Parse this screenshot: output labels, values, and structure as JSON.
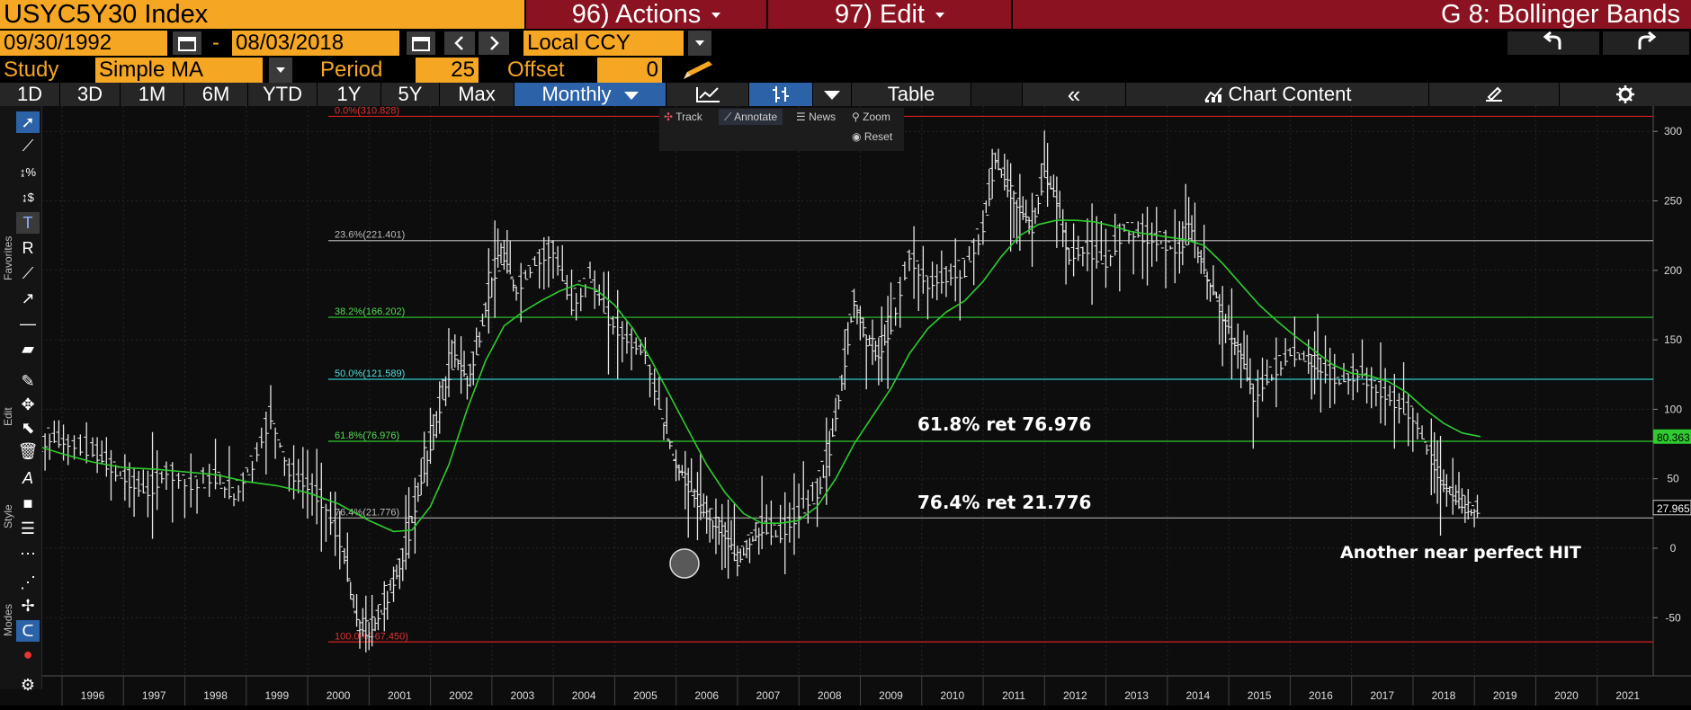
{
  "header": {
    "ticker": "USYC5Y30 Index",
    "actions_label": "96) Actions",
    "edit_label": "97) Edit",
    "chart_title": "G 8: Bollinger Bands"
  },
  "dates": {
    "start": "09/30/1992",
    "separator": "-",
    "end": "08/03/2018",
    "currency": "Local CCY"
  },
  "study": {
    "label": "Study",
    "value": "Simple MA",
    "period_label": "Period",
    "period_value": "25",
    "offset_label": "Offset",
    "offset_value": "0"
  },
  "tabs": {
    "ranges": [
      "1D",
      "3D",
      "1M",
      "6M",
      "YTD",
      "1Y",
      "5Y",
      "Max"
    ],
    "frequency": "Monthly",
    "table": "Table",
    "collapse": "«",
    "chart_content": "Chart Content"
  },
  "toolbar_mini": {
    "track": "Track",
    "annotate": "Annotate",
    "news": "News",
    "zoom": "Zoom",
    "reset": "Reset"
  },
  "side_labels": {
    "favorites": "Favorites",
    "edit": "Edit",
    "style": "Style",
    "modes": "Modes"
  },
  "annotations": {
    "ret618": "61.8% ret 76.976",
    "ret764": "76.4% ret 21.776",
    "hit": "Another near perfect HIT"
  },
  "chart_data": {
    "type": "line",
    "title": "USYC5Y30 Index",
    "x_ticks": [
      "1996",
      "1997",
      "1998",
      "1999",
      "2000",
      "2001",
      "2002",
      "2003",
      "2004",
      "2005",
      "2006",
      "2007",
      "2008",
      "2009",
      "2010",
      "2011",
      "2012",
      "2013",
      "2014",
      "2015",
      "2016",
      "2017",
      "2018",
      "2019",
      "2020",
      "2021"
    ],
    "y_ticks": [
      -50,
      0,
      50,
      100,
      150,
      200,
      250,
      300
    ],
    "ylim": [
      -90,
      320
    ],
    "last_price": "27.965",
    "ma_last": "80.363",
    "colors": {
      "price": "#e6e6e6",
      "ma": "#2ecc2e",
      "fib_red": "#d62020",
      "fib_gray": "#aaaaaa",
      "fib_green": "#2ecc2e",
      "fib_cyan": "#33cccc",
      "fib_label_red": "#e03030",
      "fib_label_gray": "#bbbbbb",
      "fib_label_green": "#55dd55",
      "fib_label_cyan": "#55dddd"
    },
    "fib_levels": [
      {
        "label": "0.0%(310.828)",
        "value": 310.828,
        "kind": "red"
      },
      {
        "label": "23.6%(221.401)",
        "value": 221.401,
        "kind": "gray"
      },
      {
        "label": "38.2%(166.202)",
        "value": 166.202,
        "kind": "green"
      },
      {
        "label": "50.0%(121.589)",
        "value": 121.589,
        "kind": "cyan"
      },
      {
        "label": "61.8%(76.976)",
        "value": 76.976,
        "kind": "green"
      },
      {
        "label": "76.4%(21.776)",
        "value": 21.776,
        "kind": "gray"
      },
      {
        "label": "100.0%(-67.450)",
        "value": -67.45,
        "kind": "red"
      }
    ],
    "series": [
      {
        "name": "USYC5Y30 Index",
        "points": [
          [
            1995.0,
            62
          ],
          [
            1995.3,
            80
          ],
          [
            1995.6,
            75
          ],
          [
            1996.0,
            70
          ],
          [
            1996.3,
            58
          ],
          [
            1996.6,
            48
          ],
          [
            1996.9,
            40
          ],
          [
            1997.2,
            55
          ],
          [
            1997.6,
            45
          ],
          [
            1998.0,
            50
          ],
          [
            1998.3,
            38
          ],
          [
            1998.6,
            60
          ],
          [
            1998.9,
            95
          ],
          [
            1999.2,
            55
          ],
          [
            1999.5,
            45
          ],
          [
            1999.8,
            30
          ],
          [
            2000.1,
            -5
          ],
          [
            2000.3,
            -55
          ],
          [
            2000.5,
            -60
          ],
          [
            2000.7,
            -45
          ],
          [
            2000.9,
            -25
          ],
          [
            2001.1,
            0
          ],
          [
            2001.3,
            40
          ],
          [
            2001.5,
            75
          ],
          [
            2001.7,
            110
          ],
          [
            2001.9,
            140
          ],
          [
            2002.1,
            120
          ],
          [
            2002.3,
            150
          ],
          [
            2002.5,
            195
          ],
          [
            2002.7,
            210
          ],
          [
            2002.9,
            185
          ],
          [
            2003.2,
            205
          ],
          [
            2003.5,
            215
          ],
          [
            2003.8,
            175
          ],
          [
            2004.1,
            195
          ],
          [
            2004.4,
            165
          ],
          [
            2004.7,
            150
          ],
          [
            2005.0,
            140
          ],
          [
            2005.3,
            90
          ],
          [
            2005.5,
            60
          ],
          [
            2005.7,
            45
          ],
          [
            2005.9,
            30
          ],
          [
            2006.1,
            20
          ],
          [
            2006.3,
            10
          ],
          [
            2006.5,
            -10
          ],
          [
            2006.7,
            5
          ],
          [
            2006.9,
            15
          ],
          [
            2007.2,
            10
          ],
          [
            2007.5,
            25
          ],
          [
            2007.8,
            40
          ],
          [
            2008.0,
            70
          ],
          [
            2008.2,
            120
          ],
          [
            2008.4,
            180
          ],
          [
            2008.6,
            150
          ],
          [
            2008.8,
            140
          ],
          [
            2009.0,
            160
          ],
          [
            2009.3,
            210
          ],
          [
            2009.6,
            190
          ],
          [
            2009.9,
            195
          ],
          [
            2010.2,
            200
          ],
          [
            2010.5,
            230
          ],
          [
            2010.7,
            280
          ],
          [
            2010.9,
            260
          ],
          [
            2011.1,
            245
          ],
          [
            2011.3,
            230
          ],
          [
            2011.5,
            270
          ],
          [
            2011.7,
            250
          ],
          [
            2011.9,
            210
          ],
          [
            2012.2,
            215
          ],
          [
            2012.5,
            205
          ],
          [
            2012.8,
            230
          ],
          [
            2013.1,
            225
          ],
          [
            2013.4,
            220
          ],
          [
            2013.7,
            215
          ],
          [
            2013.9,
            230
          ],
          [
            2014.1,
            200
          ],
          [
            2014.3,
            180
          ],
          [
            2014.5,
            155
          ],
          [
            2014.7,
            140
          ],
          [
            2014.9,
            110
          ],
          [
            2015.2,
            125
          ],
          [
            2015.5,
            140
          ],
          [
            2015.8,
            135
          ],
          [
            2016.0,
            130
          ],
          [
            2016.3,
            120
          ],
          [
            2016.6,
            125
          ],
          [
            2016.9,
            115
          ],
          [
            2017.2,
            105
          ],
          [
            2017.5,
            95
          ],
          [
            2017.8,
            65
          ],
          [
            2018.0,
            45
          ],
          [
            2018.2,
            35
          ],
          [
            2018.4,
            28
          ],
          [
            2018.6,
            27.965
          ]
        ]
      },
      {
        "name": "Simple MA 25",
        "points": [
          [
            1995.0,
            75
          ],
          [
            1995.5,
            68
          ],
          [
            1996.0,
            62
          ],
          [
            1996.5,
            58
          ],
          [
            1997.0,
            57
          ],
          [
            1997.5,
            55
          ],
          [
            1998.0,
            53
          ],
          [
            1998.5,
            48
          ],
          [
            1999.0,
            45
          ],
          [
            1999.5,
            40
          ],
          [
            2000.0,
            32
          ],
          [
            2000.5,
            20
          ],
          [
            2000.9,
            12
          ],
          [
            2001.2,
            13
          ],
          [
            2001.5,
            30
          ],
          [
            2001.8,
            60
          ],
          [
            2002.1,
            100
          ],
          [
            2002.4,
            135
          ],
          [
            2002.7,
            160
          ],
          [
            2003.0,
            170
          ],
          [
            2003.3,
            178
          ],
          [
            2003.6,
            185
          ],
          [
            2003.9,
            190
          ],
          [
            2004.2,
            186
          ],
          [
            2004.5,
            175
          ],
          [
            2004.8,
            158
          ],
          [
            2005.1,
            135
          ],
          [
            2005.4,
            110
          ],
          [
            2005.7,
            85
          ],
          [
            2006.0,
            60
          ],
          [
            2006.3,
            40
          ],
          [
            2006.6,
            25
          ],
          [
            2006.9,
            18
          ],
          [
            2007.2,
            18
          ],
          [
            2007.5,
            20
          ],
          [
            2007.8,
            30
          ],
          [
            2008.1,
            50
          ],
          [
            2008.4,
            75
          ],
          [
            2008.7,
            95
          ],
          [
            2009.0,
            115
          ],
          [
            2009.3,
            140
          ],
          [
            2009.6,
            158
          ],
          [
            2009.9,
            170
          ],
          [
            2010.2,
            178
          ],
          [
            2010.5,
            192
          ],
          [
            2010.8,
            210
          ],
          [
            2011.1,
            225
          ],
          [
            2011.4,
            233
          ],
          [
            2011.7,
            236
          ],
          [
            2012.0,
            236
          ],
          [
            2012.3,
            235
          ],
          [
            2012.6,
            232
          ],
          [
            2012.9,
            228
          ],
          [
            2013.2,
            226
          ],
          [
            2013.5,
            224
          ],
          [
            2013.8,
            222
          ],
          [
            2014.1,
            218
          ],
          [
            2014.4,
            205
          ],
          [
            2014.7,
            190
          ],
          [
            2015.0,
            175
          ],
          [
            2015.3,
            163
          ],
          [
            2015.6,
            152
          ],
          [
            2015.9,
            142
          ],
          [
            2016.2,
            132
          ],
          [
            2016.5,
            126
          ],
          [
            2016.8,
            124
          ],
          [
            2017.1,
            120
          ],
          [
            2017.4,
            112
          ],
          [
            2017.7,
            100
          ],
          [
            2018.0,
            90
          ],
          [
            2018.3,
            83
          ],
          [
            2018.6,
            80.363
          ]
        ]
      }
    ]
  }
}
